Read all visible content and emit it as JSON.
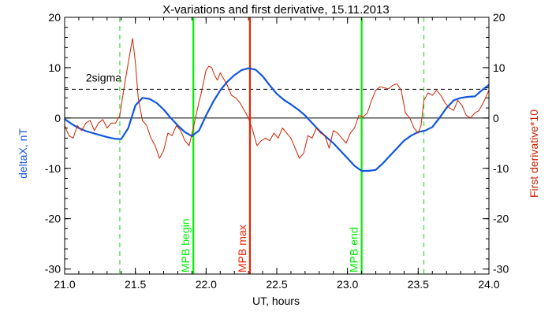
{
  "chart_data": {
    "type": "line",
    "title": "X-variations and first derivative, 15.11.2013",
    "xlabel": "UT, hours",
    "ylabel_left": "deltaX, nT",
    "ylabel_right": "First derivative*10",
    "xlim": [
      21.0,
      24.0
    ],
    "ylim": [
      -31,
      20
    ],
    "x_ticks": [
      21.0,
      21.5,
      22.0,
      22.5,
      23.0,
      23.5,
      24.0
    ],
    "x_tick_labels": [
      "21.0",
      "21.5",
      "22.0",
      "22.5",
      "23.0",
      "23.5",
      "24.0"
    ],
    "y_ticks": [
      20,
      10,
      0,
      -10,
      -20,
      -30
    ],
    "y_tick_labels": [
      "20",
      "10",
      "0",
      "-10",
      "-20",
      "-30"
    ],
    "grid": false,
    "zero_line": 0,
    "threshold": {
      "label": "2sigma",
      "value": 5.7
    },
    "vlines": [
      {
        "x": 21.39,
        "label": "",
        "color": "#33dd33",
        "style": "dashed"
      },
      {
        "x": 21.91,
        "label": "MPB begin",
        "color": "#00ee00",
        "style": "solid"
      },
      {
        "x": 22.31,
        "label": "MPB max",
        "color": "#ee2200",
        "style": "solid"
      },
      {
        "x": 23.1,
        "label": "MPB end",
        "color": "#00ee00",
        "style": "solid"
      },
      {
        "x": 23.54,
        "label": "",
        "color": "#33dd33",
        "style": "dashed"
      }
    ],
    "series": [
      {
        "key": "deltaX",
        "color": "#1155dd",
        "x": [
          21.0,
          21.05,
          21.1,
          21.15,
          21.2,
          21.25,
          21.3,
          21.35,
          21.4,
          21.45,
          21.5,
          21.55,
          21.6,
          21.65,
          21.7,
          21.75,
          21.8,
          21.85,
          21.9,
          21.95,
          22.0,
          22.05,
          22.1,
          22.15,
          22.2,
          22.25,
          22.3,
          22.35,
          22.4,
          22.45,
          22.5,
          22.55,
          22.6,
          22.65,
          22.7,
          22.75,
          22.8,
          22.85,
          22.9,
          22.95,
          23.0,
          23.05,
          23.1,
          23.15,
          23.2,
          23.25,
          23.3,
          23.35,
          23.4,
          23.45,
          23.5,
          23.55,
          23.6,
          23.65,
          23.7,
          23.75,
          23.8,
          23.85,
          23.9,
          23.95,
          24.0
        ],
        "y": [
          -0.2,
          -1.2,
          -2.0,
          -2.6,
          -3.0,
          -3.4,
          -3.8,
          -4.1,
          -4.2,
          -2.0,
          2.5,
          4.0,
          3.8,
          3.0,
          1.7,
          0.0,
          -1.5,
          -2.8,
          -3.6,
          -2.5,
          0.5,
          3.2,
          5.5,
          7.2,
          8.5,
          9.5,
          9.9,
          9.6,
          8.3,
          6.5,
          4.8,
          3.6,
          2.7,
          1.7,
          0.5,
          -1.0,
          -2.5,
          -3.8,
          -5.0,
          -6.5,
          -8.0,
          -9.5,
          -10.5,
          -10.5,
          -10.3,
          -9.0,
          -7.5,
          -6.0,
          -4.5,
          -3.5,
          -2.8,
          -2.5,
          -1.8,
          0.0,
          2.0,
          3.5,
          4.0,
          4.2,
          4.3,
          5.5,
          6.6
        ]
      },
      {
        "key": "derivative",
        "color": "#cc2200",
        "x": [
          21.0,
          21.03,
          21.06,
          21.09,
          21.12,
          21.15,
          21.18,
          21.21,
          21.24,
          21.27,
          21.3,
          21.33,
          21.36,
          21.39,
          21.42,
          21.45,
          21.48,
          21.5,
          21.52,
          21.55,
          21.58,
          21.61,
          21.64,
          21.67,
          21.7,
          21.73,
          21.76,
          21.79,
          21.82,
          21.85,
          21.88,
          21.91,
          21.94,
          21.97,
          22.0,
          22.02,
          22.04,
          22.06,
          22.08,
          22.1,
          22.12,
          22.15,
          22.18,
          22.21,
          22.24,
          22.27,
          22.3,
          22.33,
          22.36,
          22.39,
          22.42,
          22.45,
          22.48,
          22.51,
          22.54,
          22.57,
          22.6,
          22.63,
          22.66,
          22.69,
          22.72,
          22.75,
          22.78,
          22.81,
          22.84,
          22.87,
          22.9,
          22.93,
          22.96,
          22.99,
          23.02,
          23.05,
          23.08,
          23.11,
          23.14,
          23.17,
          23.2,
          23.23,
          23.26,
          23.29,
          23.32,
          23.35,
          23.38,
          23.41,
          23.44,
          23.47,
          23.5,
          23.52,
          23.54,
          23.57,
          23.6,
          23.63,
          23.66,
          23.69,
          23.72,
          23.75,
          23.78,
          23.81,
          23.84,
          23.87,
          23.9,
          23.93,
          23.96,
          24.0
        ],
        "y": [
          -1.5,
          -3.5,
          -4.0,
          -1.5,
          -2.5,
          -1.0,
          -0.5,
          -2.5,
          -1.0,
          -0.3,
          -2.0,
          -1.0,
          -1.0,
          0.5,
          6.0,
          11.0,
          15.8,
          11.0,
          4.0,
          -0.5,
          -1.5,
          -4.0,
          -5.5,
          -8.0,
          -6.5,
          -3.0,
          -3.5,
          -1.5,
          -2.5,
          -4.5,
          -5.5,
          -2.0,
          2.0,
          5.5,
          9.5,
          10.3,
          10.0,
          8.5,
          7.5,
          9.0,
          8.0,
          6.5,
          4.5,
          4.0,
          3.0,
          1.5,
          0.0,
          -2.5,
          -5.5,
          -4.5,
          -4.0,
          -4.5,
          -3.0,
          -4.0,
          -2.0,
          -3.0,
          -4.0,
          -6.0,
          -8.0,
          -7.0,
          -3.5,
          -4.0,
          -2.0,
          -3.0,
          -3.5,
          -6.0,
          -2.5,
          -3.0,
          -4.0,
          -5.0,
          -3.0,
          -2.0,
          0.5,
          0.2,
          1.0,
          3.5,
          5.5,
          6.2,
          6.0,
          5.8,
          6.5,
          6.8,
          5.5,
          1.0,
          0.0,
          -2.0,
          -3.0,
          -1.5,
          3.5,
          5.0,
          4.5,
          5.5,
          4.5,
          3.0,
          2.0,
          1.5,
          3.5,
          2.5,
          0.5,
          0.0,
          1.0,
          1.5,
          3.0,
          5.5
        ]
      }
    ]
  }
}
